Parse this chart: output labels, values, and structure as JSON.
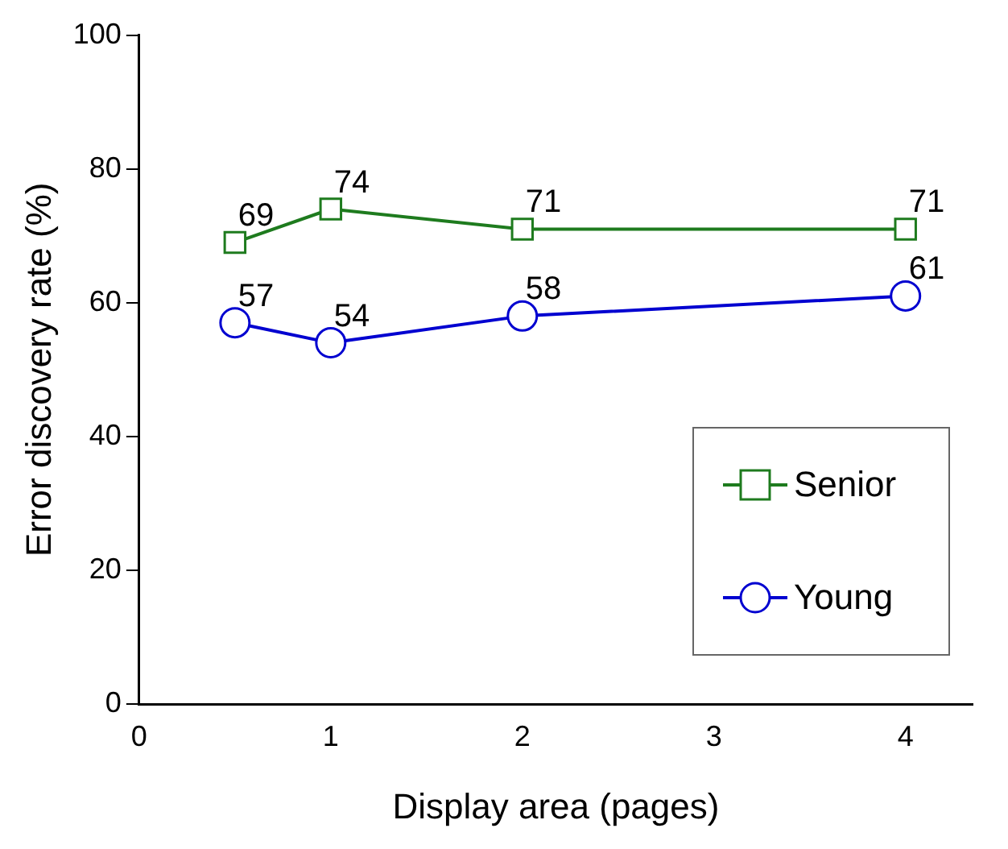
{
  "chart_data": {
    "type": "line",
    "xlabel": "Display area (pages)",
    "ylabel": "Error discovery rate (%)",
    "x": [
      0.5,
      1,
      2,
      4
    ],
    "series": [
      {
        "name": "Senior",
        "color": "#1e7b1e",
        "marker": "square",
        "values": [
          69,
          74,
          71,
          71
        ]
      },
      {
        "name": "Young",
        "color": "#0000d0",
        "marker": "circle",
        "values": [
          57,
          54,
          58,
          61
        ]
      }
    ],
    "xlim": [
      0,
      4.35
    ],
    "xticks": [
      0,
      1,
      2,
      3,
      4
    ],
    "ylim": [
      0,
      100
    ],
    "yticks": [
      0,
      20,
      40,
      60,
      80,
      100
    ],
    "grid": false,
    "legend": "bottom right",
    "data_labels": true,
    "line_style": "solid"
  }
}
